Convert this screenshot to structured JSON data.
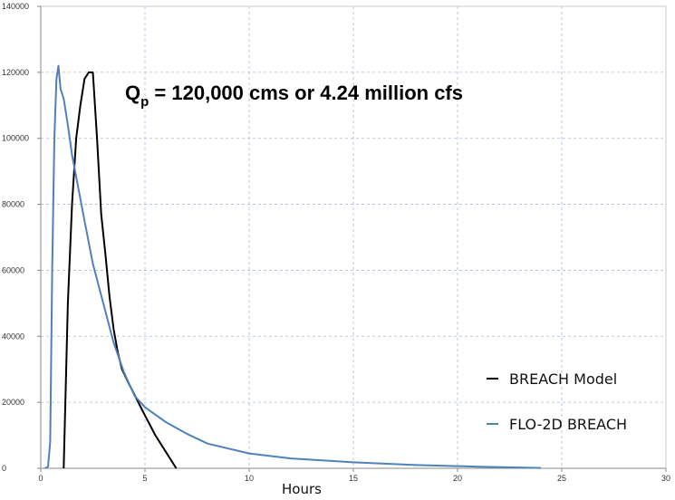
{
  "chart_data": {
    "type": "line",
    "title": "",
    "xlabel": "Hours",
    "ylabel": "",
    "xlim": [
      0,
      30
    ],
    "ylim": [
      0,
      140000
    ],
    "x_ticks": [
      0,
      5,
      10,
      15,
      20,
      25,
      30
    ],
    "y_ticks": [
      0,
      20000,
      40000,
      60000,
      80000,
      100000,
      120000,
      140000
    ],
    "grid": true,
    "legend_position": "bottom-right",
    "annotation": {
      "main": "Q",
      "subscript": "p",
      "rest": " = 120,000 cms or 4.24 million cfs"
    },
    "series": [
      {
        "name": "BREACH Model",
        "color": "#000000",
        "x": [
          1.1,
          1.3,
          1.5,
          1.7,
          1.9,
          2.1,
          2.3,
          2.5,
          2.7,
          2.9,
          3.1,
          3.3,
          3.5,
          3.7,
          3.9,
          4.2,
          4.6,
          5.0,
          5.5,
          6.0,
          6.5
        ],
        "y": [
          0,
          50000,
          80000,
          100000,
          110000,
          118000,
          120000,
          120000,
          100000,
          77000,
          65000,
          52000,
          42000,
          35000,
          30000,
          26000,
          21000,
          16000,
          10000,
          5000,
          0
        ]
      },
      {
        "name": "FLO-2D BREACH",
        "color": "#4f81bd",
        "x": [
          0.2,
          0.35,
          0.45,
          0.55,
          0.65,
          0.75,
          0.85,
          0.95,
          1.1,
          1.3,
          1.5,
          1.8,
          2.1,
          2.5,
          3.0,
          3.5,
          4.0,
          4.5,
          5.0,
          6.0,
          7.0,
          8.0,
          10.0,
          12.0,
          15.0,
          18.0,
          21.0,
          24.0
        ],
        "y": [
          0,
          500,
          8000,
          60000,
          100000,
          118000,
          122000,
          115000,
          112000,
          104000,
          95000,
          85000,
          75000,
          62000,
          50000,
          38000,
          29000,
          22000,
          18500,
          14000,
          10500,
          7500,
          4500,
          3000,
          1800,
          1000,
          500,
          100
        ]
      }
    ]
  }
}
